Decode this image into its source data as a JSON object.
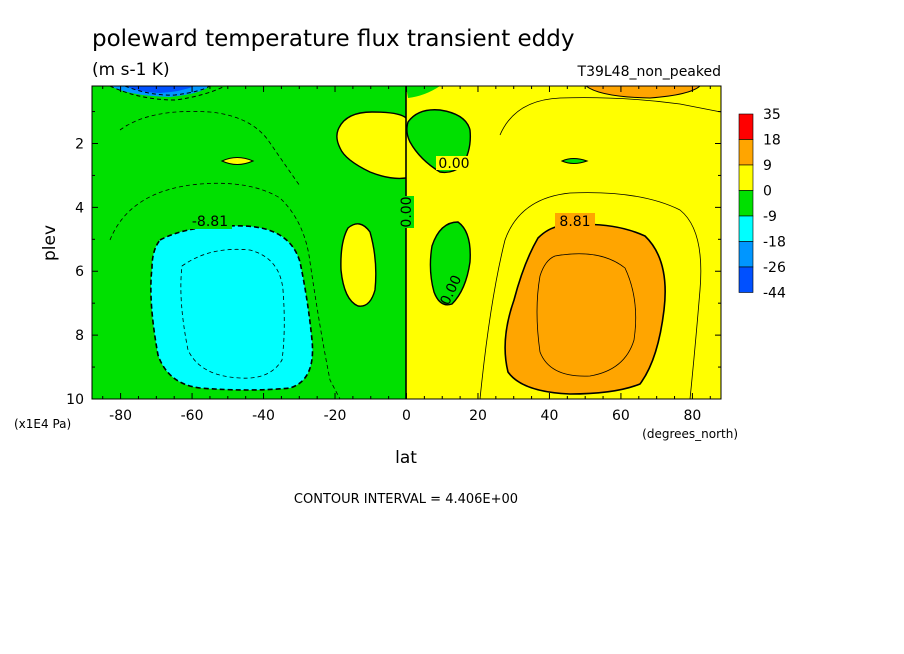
{
  "chart_data": {
    "type": "heatmap",
    "title": "poleward temperature flux transient eddy",
    "units": "(m s-1 K)",
    "run_label": "T39L48_non_peaked",
    "xlabel": "lat",
    "x_units": "(degrees_north)",
    "ylabel": "plev",
    "y_units": "(x1E4 Pa)",
    "xlim": [
      -88,
      88
    ],
    "ylim": [
      10,
      0.2
    ],
    "x_ticks": [
      -80,
      -60,
      -40,
      -20,
      0,
      20,
      40,
      60,
      80
    ],
    "y_ticks": [
      2,
      4,
      6,
      8,
      10
    ],
    "x_tick_labels": [
      "-80",
      "-60",
      "-40",
      "-20",
      "0",
      "20",
      "40",
      "60",
      "80"
    ],
    "y_tick_labels": [
      "2",
      "4",
      "6",
      "8",
      "10"
    ],
    "contour_interval": "CONTOUR INTERVAL = 4.406E+00",
    "contour_labels": [
      "8.81",
      "-8.81",
      "0.00",
      "0.00",
      "0.00"
    ],
    "colorbar": {
      "labels": [
        "35",
        "18",
        "9",
        "0",
        "-9",
        "-18",
        "-26",
        "-44"
      ],
      "colors": [
        "#ff0000",
        "#ffa500",
        "#ffff00",
        "#00e000",
        "#00ffff",
        "#0096ff",
        "#0050ff"
      ]
    }
  }
}
